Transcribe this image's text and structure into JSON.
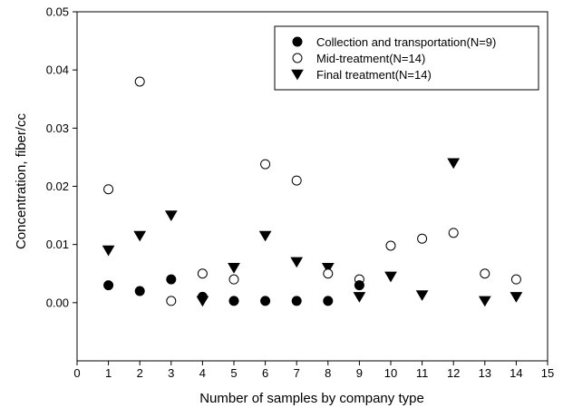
{
  "chart_data": {
    "type": "scatter",
    "xlabel": "Number of samples by company type",
    "ylabel": "Concentration, fiber/cc",
    "xlim": [
      0,
      15
    ],
    "ylim": [
      -0.01,
      0.05
    ],
    "x_ticks": [
      "0",
      "1",
      "2",
      "3",
      "4",
      "5",
      "6",
      "7",
      "8",
      "9",
      "10",
      "11",
      "12",
      "13",
      "14",
      "15"
    ],
    "y_ticks": [
      "0.00",
      "0.01",
      "0.02",
      "0.03",
      "0.04",
      "0.05"
    ],
    "legend_position": "top-right",
    "grid": false,
    "series": [
      {
        "name": "Collection and transportation(N=9)",
        "marker": "filled-circle",
        "color": "#000000",
        "x": [
          1,
          2,
          3,
          4,
          5,
          6,
          7,
          8,
          9
        ],
        "y": [
          0.003,
          0.002,
          0.004,
          0.001,
          0.0003,
          0.0003,
          0.0003,
          0.0003,
          0.003
        ]
      },
      {
        "name": "Mid-treatment(N=14)",
        "marker": "open-circle",
        "color": "#000000",
        "x": [
          1,
          2,
          3,
          4,
          5,
          6,
          7,
          8,
          9,
          10,
          11,
          12,
          13,
          14
        ],
        "y": [
          0.0195,
          0.038,
          0.0003,
          0.005,
          0.004,
          0.0238,
          0.021,
          0.005,
          0.004,
          0.0098,
          0.011,
          0.012,
          0.005,
          0.004
        ]
      },
      {
        "name": "Final treatment(N=14)",
        "marker": "filled-triangle-down",
        "color": "#000000",
        "x": [
          1,
          2,
          3,
          4,
          5,
          6,
          7,
          8,
          9,
          10,
          11,
          12,
          13,
          14
        ],
        "y": [
          0.009,
          0.0115,
          0.015,
          0.0003,
          0.006,
          0.0115,
          0.007,
          0.006,
          0.001,
          0.0045,
          0.0013,
          0.024,
          0.0003,
          0.001
        ]
      }
    ]
  }
}
